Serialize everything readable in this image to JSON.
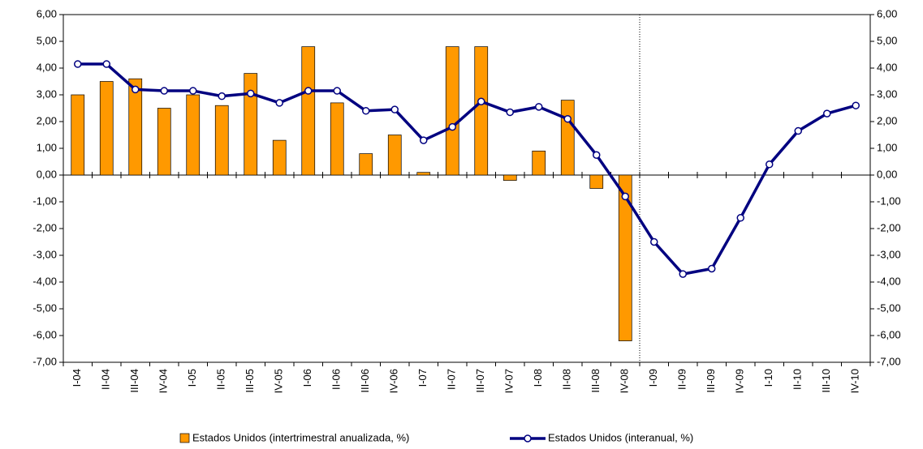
{
  "chart_data": {
    "type": "bar-line",
    "categories": [
      "I-04",
      "II-04",
      "III-04",
      "IV-04",
      "I-05",
      "II-05",
      "III-05",
      "IV-05",
      "I-06",
      "II-06",
      "III-06",
      "IV-06",
      "I-07",
      "II-07",
      "III-07",
      "IV-07",
      "I-08",
      "II-08",
      "III-08",
      "IV-08",
      "I-09",
      "II-09",
      "III-09",
      "IV-09",
      "I-10",
      "II-10",
      "III-10",
      "IV-10"
    ],
    "series": [
      {
        "name": "Estados Unidos (intertrimestral anualizada, %)",
        "type": "bar",
        "color": "#ff9900",
        "values": [
          3.0,
          3.5,
          3.6,
          2.5,
          3.0,
          2.6,
          3.8,
          1.3,
          4.8,
          2.7,
          0.8,
          1.5,
          0.1,
          4.8,
          4.8,
          -0.2,
          0.9,
          2.8,
          -0.5,
          -6.2,
          null,
          null,
          null,
          null,
          null,
          null,
          null,
          null
        ]
      },
      {
        "name": "Estados Unidos (interanual, %)",
        "type": "line",
        "color": "#000080",
        "axis": "y2",
        "values": [
          4.15,
          4.15,
          3.2,
          3.15,
          3.15,
          2.95,
          3.05,
          2.7,
          3.15,
          3.15,
          2.4,
          2.45,
          1.3,
          1.8,
          2.75,
          2.35,
          2.55,
          2.1,
          0.75,
          -0.8,
          -2.5,
          -3.7,
          -3.5,
          -1.6,
          0.4,
          1.65,
          2.3,
          2.6
        ]
      }
    ],
    "ylim": [
      -7,
      6
    ],
    "yticks": [
      {
        "value": 6,
        "label": "6,00"
      },
      {
        "value": 5,
        "label": "5,00"
      },
      {
        "value": 4,
        "label": "4,00"
      },
      {
        "value": 3,
        "label": "3,00"
      },
      {
        "value": 2,
        "label": "2,00"
      },
      {
        "value": 1,
        "label": "1,00"
      },
      {
        "value": 0,
        "label": "0,00"
      },
      {
        "value": -1,
        "label": "-1,00"
      },
      {
        "value": -2,
        "label": "-2,00"
      },
      {
        "value": -3,
        "label": "-3,00"
      },
      {
        "value": -4,
        "label": "-4,00"
      },
      {
        "value": -5,
        "label": "-5,00"
      },
      {
        "value": -6,
        "label": "-6,00"
      },
      {
        "value": -7,
        "label": "-7,00"
      }
    ],
    "y2lim": [
      -7,
      6
    ],
    "y2ticks": [
      {
        "value": 6,
        "label": "6,00"
      },
      {
        "value": 5,
        "label": "5,00"
      },
      {
        "value": 4,
        "label": "4,00"
      },
      {
        "value": 3,
        "label": "3,00"
      },
      {
        "value": 2,
        "label": "2,00"
      },
      {
        "value": 1,
        "label": "1,00"
      },
      {
        "value": 0,
        "label": "0,00"
      },
      {
        "value": -1,
        "label": "-1,00"
      },
      {
        "value": -2,
        "label": "-2,00"
      },
      {
        "value": -3,
        "label": "-3,00"
      },
      {
        "value": -4,
        "label": "-4,00"
      },
      {
        "value": -5,
        "label": "-5,00"
      },
      {
        "value": -6,
        "label": "-6,00"
      },
      {
        "value": -7,
        "label": "-7,00"
      }
    ],
    "legend": "bottom"
  }
}
